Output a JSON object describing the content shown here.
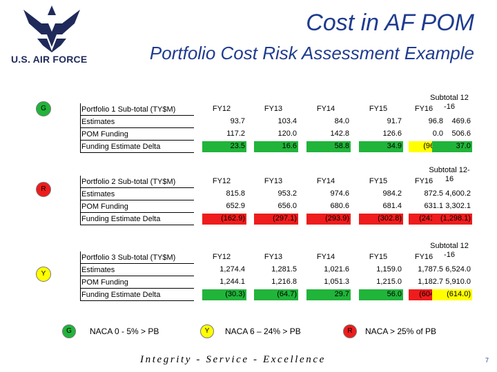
{
  "header": {
    "title": "Cost in AF POM",
    "subtitle": "Portfolio Cost Risk Assessment Example",
    "logo_text": "U.S. AIR FORCE"
  },
  "portfolios": [
    {
      "status": "G",
      "status_color": "#21b43a",
      "label": "Portfolio 1 Sub-total (TY$M)",
      "rows": [
        "Estimates",
        "POM Funding",
        "Funding Estimate Delta"
      ],
      "headers": [
        "FY12",
        "FY13",
        "FY14",
        "FY15",
        "FY16",
        "Subtotal 12 -16"
      ],
      "estimates": [
        "93.7",
        "103.4",
        "84.0",
        "91.7",
        "96.8",
        "469.6"
      ],
      "pom": [
        "117.2",
        "120.0",
        "142.8",
        "126.6",
        "0.0",
        "506.6"
      ],
      "delta": [
        "23.5",
        "16.6",
        "58.8",
        "34.9",
        "(96.8)",
        "37.0"
      ],
      "delta_colors": [
        "#21b43a",
        "#21b43a",
        "#21b43a",
        "#21b43a",
        "#ffff00",
        "#21b43a"
      ]
    },
    {
      "status": "R",
      "status_color": "#ee1c1c",
      "label": "Portfolio 2 Sub-total (TY$M)",
      "rows": [
        "Estimates",
        "POM Funding",
        "Funding Estimate Delta"
      ],
      "headers": [
        "FY12",
        "FY13",
        "FY14",
        "FY15",
        "FY16",
        "Subtotal 12-16"
      ],
      "estimates": [
        "815.8",
        "953.2",
        "974.6",
        "984.2",
        "872.5",
        "4,600.2"
      ],
      "pom": [
        "652.9",
        "656.0",
        "680.6",
        "681.4",
        "631.1",
        "3,302.1"
      ],
      "delta": [
        "(162.9)",
        "(297.1)",
        "(293.9)",
        "(302.8)",
        "(241.4)",
        "(1,298.1)"
      ],
      "delta_colors": [
        "#ee1c1c",
        "#ee1c1c",
        "#ee1c1c",
        "#ee1c1c",
        "#ee1c1c",
        "#ee1c1c"
      ]
    },
    {
      "status": "Y",
      "status_color": "#ffff00",
      "label": "Portfolio 3 Sub-total (TY$M)",
      "rows": [
        "Estimates",
        "POM Funding",
        "Funding Estimate Delta"
      ],
      "headers": [
        "FY12",
        "FY13",
        "FY14",
        "FY15",
        "FY16",
        "Subtotal 12 -16"
      ],
      "estimates": [
        "1,274.4",
        "1,281.5",
        "1,021.6",
        "1,159.0",
        "1,787.5",
        "6,524.0"
      ],
      "pom": [
        "1,244.1",
        "1,216.8",
        "1,051.3",
        "1,215.0",
        "1,182.7",
        "5,910.0"
      ],
      "delta": [
        "(30.3)",
        "(64.7)",
        "29.7",
        "56.0",
        "(604.8)",
        "(614.0)"
      ],
      "delta_colors": [
        "#21b43a",
        "#21b43a",
        "#21b43a",
        "#21b43a",
        "#ee1c1c",
        "#ffff00"
      ]
    }
  ],
  "legend": [
    {
      "code": "G",
      "text": "NACA 0 - 5% > PB",
      "color": "#21b43a"
    },
    {
      "code": "Y",
      "text": "NACA 6 – 24% > PB",
      "color": "#ffff00"
    },
    {
      "code": "R",
      "text": "NACA > 25% of PB",
      "color": "#ee1c1c"
    }
  ],
  "footer": {
    "motto": "Integrity - Service - Excellence",
    "page_number": "7"
  }
}
